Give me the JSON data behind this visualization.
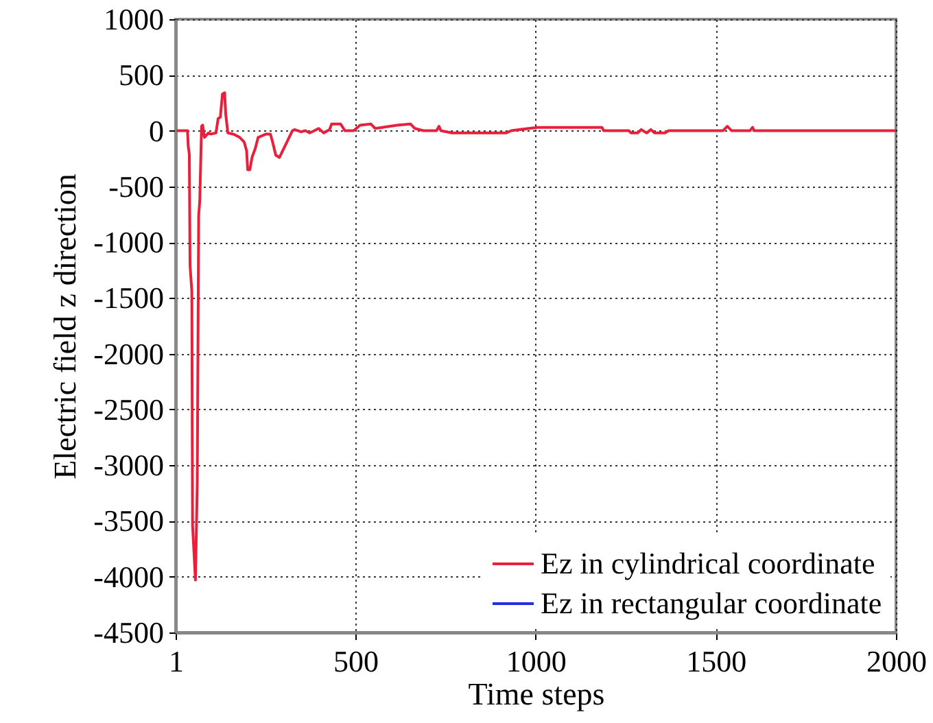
{
  "chart_data": {
    "type": "line",
    "xlabel": "Time steps",
    "ylabel": "Electric field z direction",
    "x": [
      4,
      34,
      36,
      39,
      41,
      46,
      48,
      56,
      61,
      65,
      68,
      73,
      76,
      81,
      92,
      99,
      113,
      119,
      125,
      131,
      137,
      140,
      146,
      161,
      179,
      191,
      198,
      201,
      207,
      213,
      222,
      230,
      252,
      264,
      270,
      279,
      289,
      301,
      313,
      325,
      331,
      349,
      361,
      373,
      386,
      398,
      412,
      428,
      434,
      459,
      471,
      495,
      513,
      543,
      555,
      616,
      653,
      665,
      689,
      725,
      732,
      737,
      768,
      919,
      932,
      1005,
      1184,
      1189,
      1259,
      1265,
      1283,
      1293,
      1308,
      1320,
      1330,
      1359,
      1369,
      1520,
      1532,
      1544,
      1595,
      1602,
      1607,
      2000
    ],
    "series": [
      {
        "name": "Ez in cylindrical coordinate",
        "color": "#e8203c",
        "values": [
          0,
          0,
          -140,
          -210,
          -1210,
          -1440,
          -3540,
          -4030,
          -3170,
          -760,
          -630,
          40,
          50,
          -60,
          -20,
          -30,
          -20,
          110,
          120,
          330,
          340,
          150,
          -20,
          -30,
          -60,
          -100,
          -180,
          -350,
          -350,
          -240,
          -160,
          -60,
          -30,
          -30,
          -100,
          -220,
          -240,
          -160,
          -80,
          0,
          10,
          -10,
          0,
          -20,
          0,
          20,
          -20,
          10,
          60,
          60,
          0,
          0,
          50,
          60,
          20,
          50,
          60,
          20,
          0,
          0,
          40,
          0,
          -20,
          -20,
          0,
          30,
          30,
          0,
          0,
          -20,
          -20,
          10,
          -20,
          10,
          -20,
          -20,
          0,
          0,
          40,
          0,
          0,
          30,
          0,
          0
        ]
      },
      {
        "name": "Ez in rectangular coordinate",
        "color": "#2030e0",
        "values": [
          null,
          null,
          null,
          null,
          null,
          null,
          null,
          null,
          null,
          null,
          null,
          null,
          null,
          null,
          null,
          null,
          null,
          null,
          null,
          null,
          null,
          null,
          null,
          null,
          null,
          null,
          null,
          null,
          null,
          null,
          null,
          null,
          null,
          null,
          null,
          null,
          null,
          null,
          null,
          null,
          null,
          null,
          null,
          null,
          null,
          null,
          null,
          null,
          null,
          null,
          null,
          null,
          null,
          null,
          null,
          null,
          null,
          null,
          null,
          null,
          null,
          null,
          null,
          null,
          null,
          null,
          null,
          null,
          null,
          null,
          null,
          null,
          null,
          null,
          null,
          null,
          null,
          null,
          null,
          null,
          null,
          null,
          null,
          null
        ]
      }
    ],
    "xlim": [
      1,
      2000
    ],
    "ylim": [
      -4500,
      1000
    ],
    "xticks": [
      1,
      500,
      1000,
      1500,
      2000
    ],
    "yticks": [
      -4500,
      -4000,
      -3500,
      -3000,
      -2500,
      -2000,
      -1500,
      -1000,
      -500,
      0,
      500,
      1000
    ],
    "grid": true,
    "legend": "bottom right",
    "line_style": "solid"
  }
}
